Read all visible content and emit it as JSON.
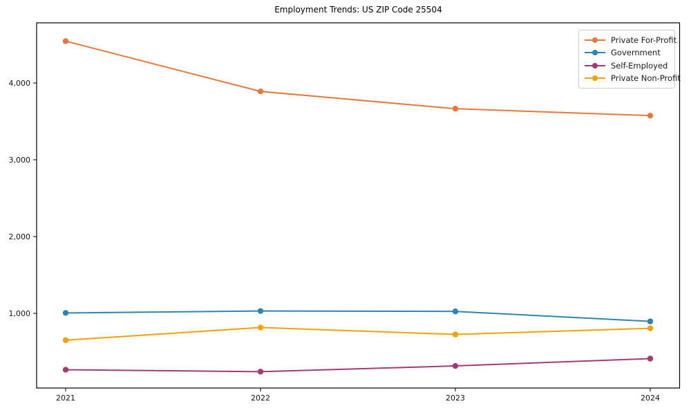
{
  "chart_data": {
    "type": "line",
    "title": "Employment Trends: US ZIP Code 25504",
    "xlabel": "",
    "ylabel": "",
    "categories": [
      "2021",
      "2022",
      "2023",
      "2024"
    ],
    "series": [
      {
        "name": "Private For-Profit",
        "color": "#E8773D",
        "values": [
          4545,
          3890,
          3665,
          3575
        ]
      },
      {
        "name": "Government",
        "color": "#2E86AB",
        "values": [
          1005,
          1030,
          1025,
          895
        ]
      },
      {
        "name": "Self-Employed",
        "color": "#A23B72",
        "values": [
          265,
          240,
          315,
          410
        ]
      },
      {
        "name": "Private Non-Profit",
        "color": "#F5A104",
        "values": [
          650,
          815,
          725,
          805
        ]
      }
    ],
    "y_ticks": [
      {
        "value": 1000,
        "label": "1,000"
      },
      {
        "value": 2000,
        "label": "2,000"
      },
      {
        "value": 3000,
        "label": "3,000"
      },
      {
        "value": 4000,
        "label": "4,000"
      }
    ],
    "ylim": [
      27,
      4785
    ],
    "grid": false,
    "legend_position": "upper right",
    "marker": "circle"
  }
}
